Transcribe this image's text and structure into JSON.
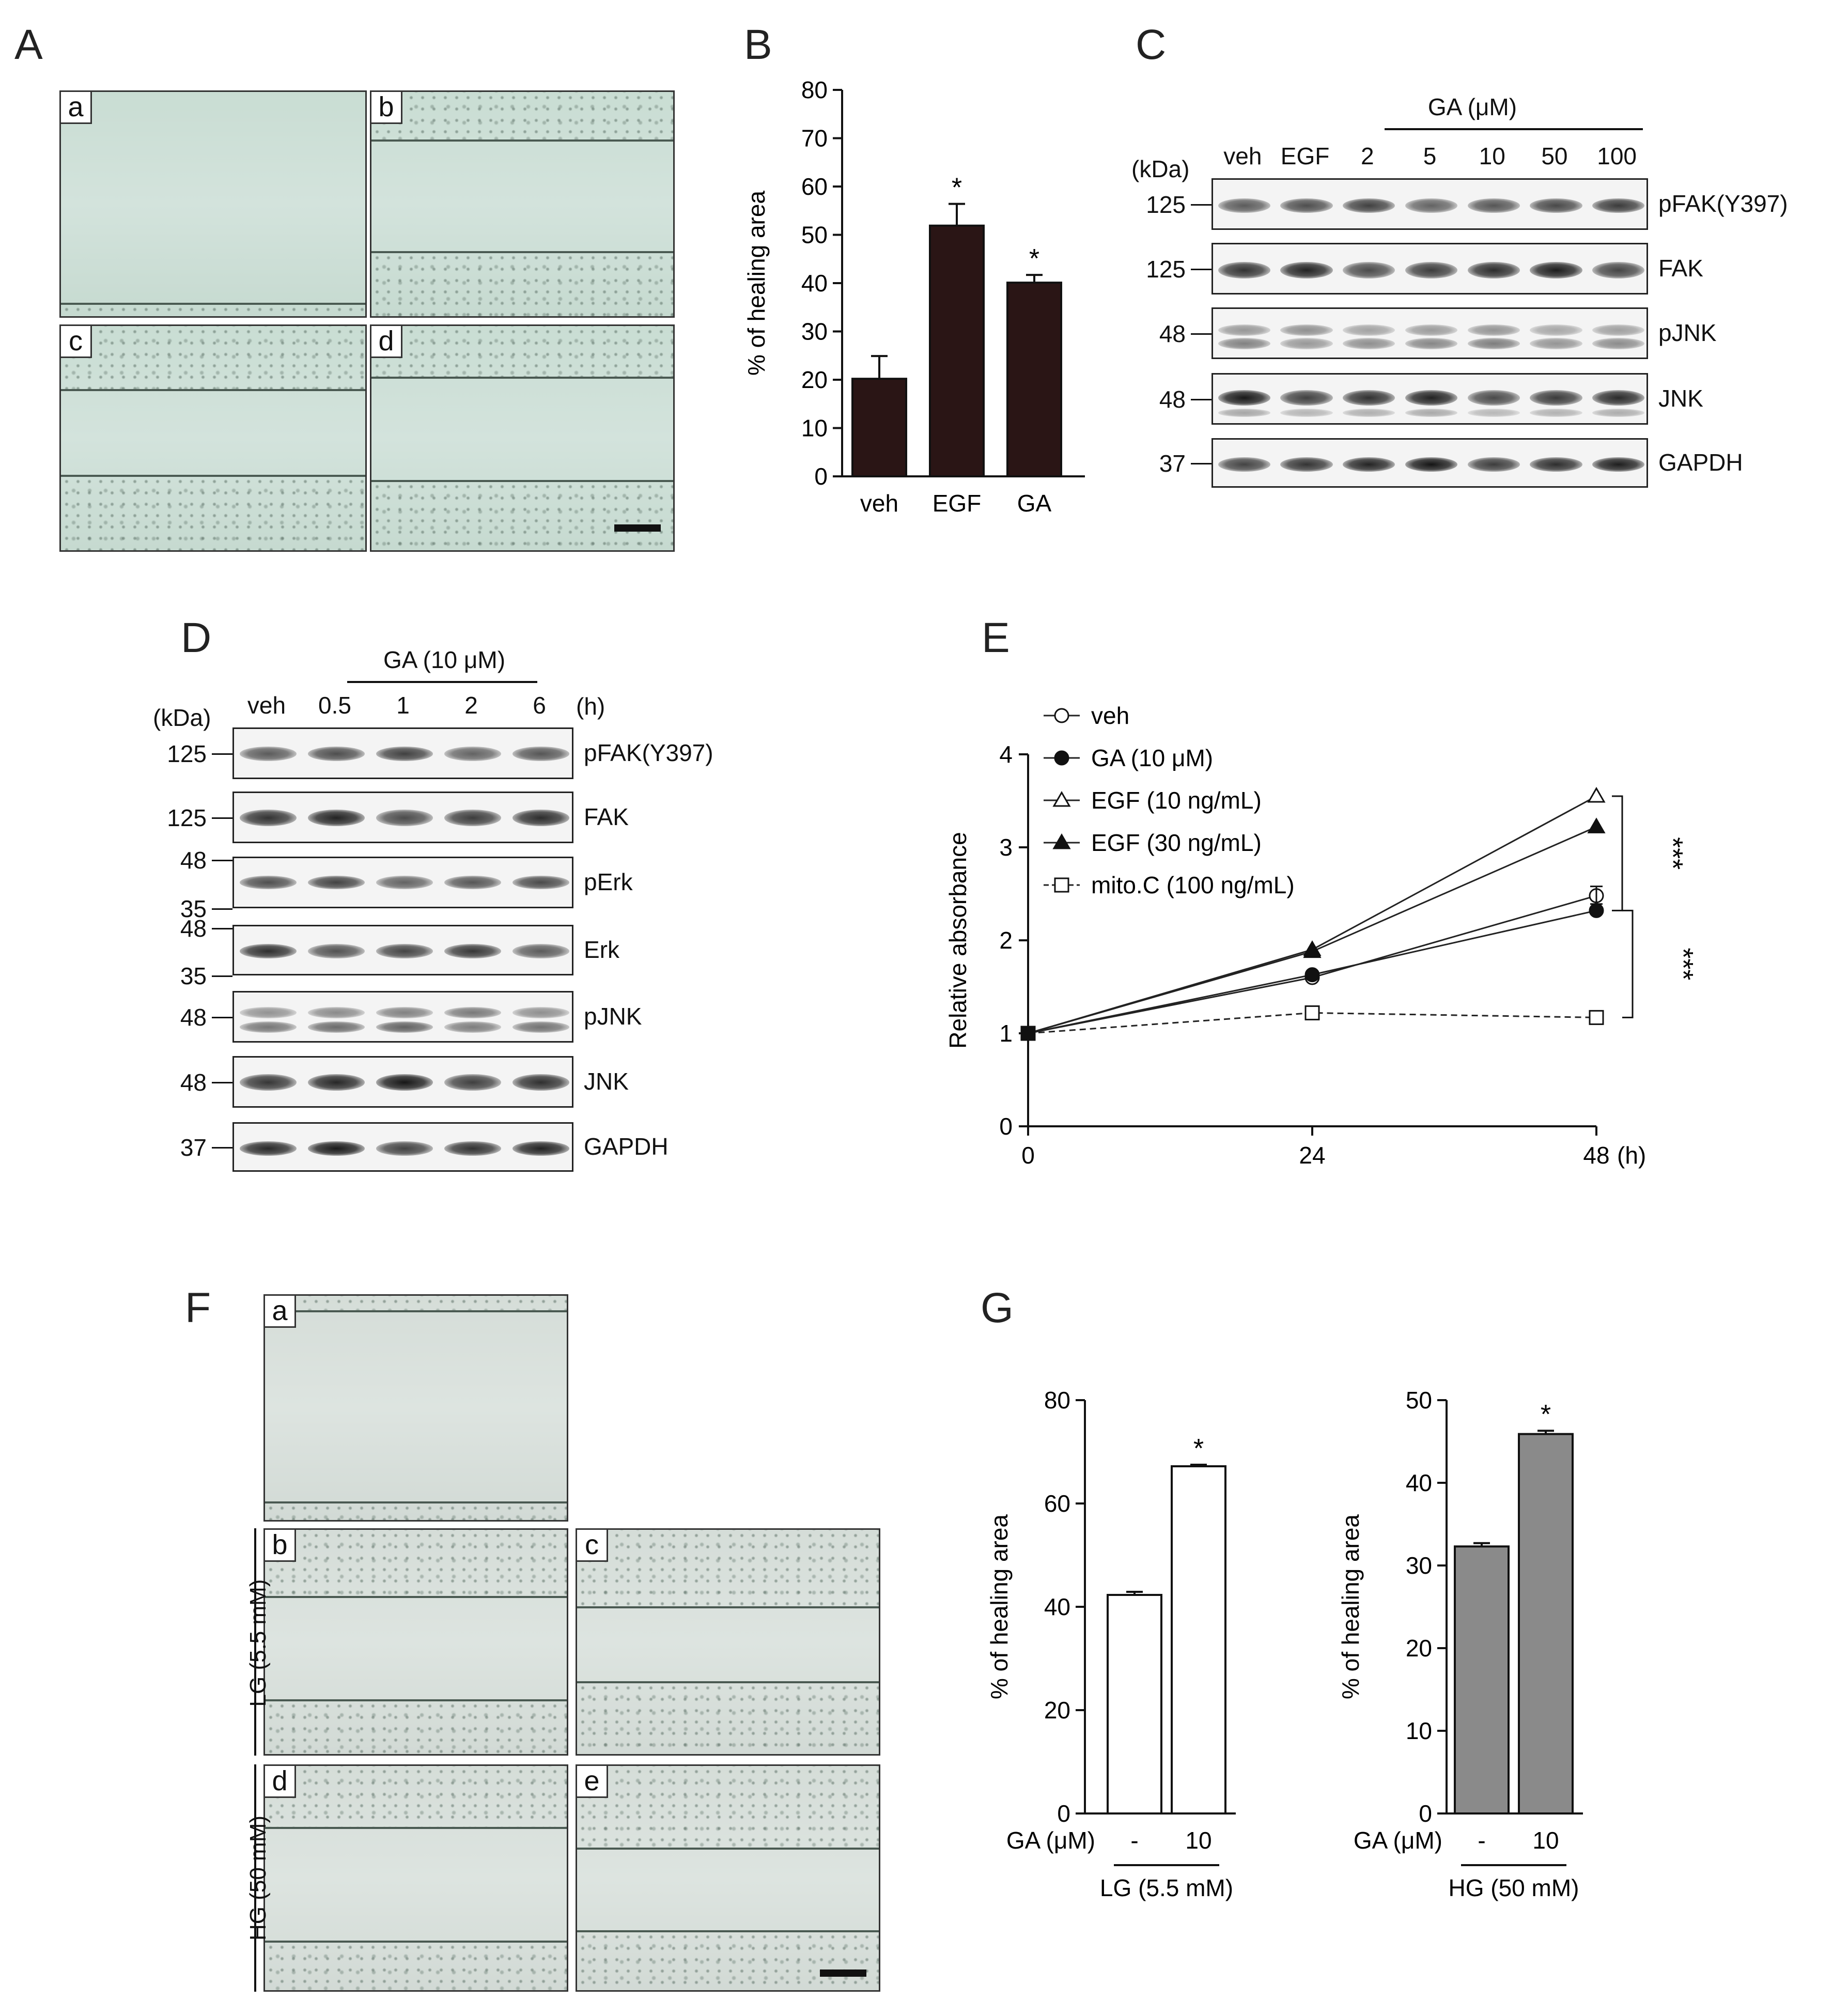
{
  "panels": {
    "A": {
      "letter": "A",
      "images": [
        {
          "label": "a"
        },
        {
          "label": "b"
        },
        {
          "label": "c"
        },
        {
          "label": "d"
        }
      ]
    },
    "B": {
      "letter": "B",
      "chart_data": {
        "type": "bar",
        "categories": [
          "veh",
          "EGF",
          "GA"
        ],
        "values": [
          20.2,
          51.9,
          40.1
        ],
        "errors": [
          4.7,
          4.5,
          1.6
        ],
        "significance": [
          "",
          "*",
          "*"
        ],
        "ylabel": "% of healing area",
        "ylim": [
          0,
          80
        ],
        "yticks": [
          0,
          10,
          20,
          30,
          40,
          50,
          60,
          70,
          80
        ],
        "bar_color": "#2a1515"
      }
    },
    "C": {
      "letter": "C",
      "group_label": "GA (μM)",
      "kda_label": "(kDa)",
      "lanes": [
        "veh",
        "EGF",
        "2",
        "5",
        "10",
        "50",
        "100"
      ],
      "blots": [
        {
          "kda": "125",
          "name": "pFAK(Y397)"
        },
        {
          "kda": "125",
          "name": "FAK"
        },
        {
          "kda": "48",
          "name": "pJNK"
        },
        {
          "kda": "48",
          "name": "JNK"
        },
        {
          "kda": "37",
          "name": "GAPDH"
        }
      ]
    },
    "D": {
      "letter": "D",
      "group_label": "GA (10 μM)",
      "kda_label": "(kDa)",
      "unit_label": "(h)",
      "lanes": [
        "veh",
        "0.5",
        "1",
        "2",
        "6"
      ],
      "blots": [
        {
          "kda": [
            "125"
          ],
          "name": "pFAK(Y397)"
        },
        {
          "kda": [
            "125"
          ],
          "name": "FAK"
        },
        {
          "kda": [
            "48",
            "35"
          ],
          "name": "pErk"
        },
        {
          "kda": [
            "48",
            "35"
          ],
          "name": "Erk"
        },
        {
          "kda": [
            "48"
          ],
          "name": "pJNK"
        },
        {
          "kda": [
            "48"
          ],
          "name": "JNK"
        },
        {
          "kda": [
            "37"
          ],
          "name": "GAPDH"
        }
      ]
    },
    "E": {
      "letter": "E",
      "chart_data": {
        "type": "line",
        "x": [
          0,
          24,
          48
        ],
        "xticks": [
          "0",
          "24",
          "48"
        ],
        "xunit": "(h)",
        "ylabel": "Relative absorbance",
        "ylim": [
          0,
          4
        ],
        "yticks": [
          0,
          1,
          2,
          3,
          4
        ],
        "series": [
          {
            "name": "veh",
            "values": [
              1,
              1.6,
              2.48
            ],
            "marker": "circle-open",
            "dashed": false
          },
          {
            "name": "GA (10 μM)",
            "values": [
              1,
              1.63,
              2.32
            ],
            "marker": "circle-filled",
            "dashed": false
          },
          {
            "name": "EGF (10 ng/mL)",
            "values": [
              1,
              1.9,
              3.55
            ],
            "marker": "triangle-open",
            "dashed": false
          },
          {
            "name": "EGF (30 ng/mL)",
            "values": [
              1,
              1.88,
              3.22
            ],
            "marker": "triangle-filled",
            "dashed": false
          },
          {
            "name": "mito.C (100 ng/mL)",
            "values": [
              1,
              1.22,
              1.17
            ],
            "marker": "square-open",
            "dashed": true
          }
        ],
        "significance": [
          "***",
          "***"
        ]
      }
    },
    "F": {
      "letter": "F",
      "images": [
        {
          "label": "a"
        },
        {
          "label": "b"
        },
        {
          "label": "c"
        },
        {
          "label": "d"
        },
        {
          "label": "e"
        }
      ],
      "row_labels": [
        "LG (5.5 mM)",
        "HG (50 mM)"
      ]
    },
    "G": {
      "letter": "G",
      "chart_data": [
        {
          "type": "bar",
          "categories": [
            "-",
            "10"
          ],
          "values": [
            42.3,
            67.2
          ],
          "errors": [
            0.6,
            0.3
          ],
          "significance": [
            "",
            "*"
          ],
          "ylabel": "% of healing area",
          "ylim": [
            0,
            80
          ],
          "yticks": [
            0,
            20,
            40,
            60,
            80
          ],
          "xlabel_prefix": "GA (μM)",
          "group_label": "LG (5.5 mM)",
          "bar_color": "#ffffff"
        },
        {
          "type": "bar",
          "categories": [
            "-",
            "10"
          ],
          "values": [
            32.3,
            45.9
          ],
          "errors": [
            0.4,
            0.4
          ],
          "significance": [
            "",
            "*"
          ],
          "ylabel": "% of healing area",
          "ylim": [
            0,
            50
          ],
          "yticks": [
            0,
            10,
            20,
            30,
            40,
            50
          ],
          "xlabel_prefix": "GA (μM)",
          "group_label": "HG (50 mM)",
          "bar_color": "#8a8a8a"
        }
      ]
    }
  }
}
